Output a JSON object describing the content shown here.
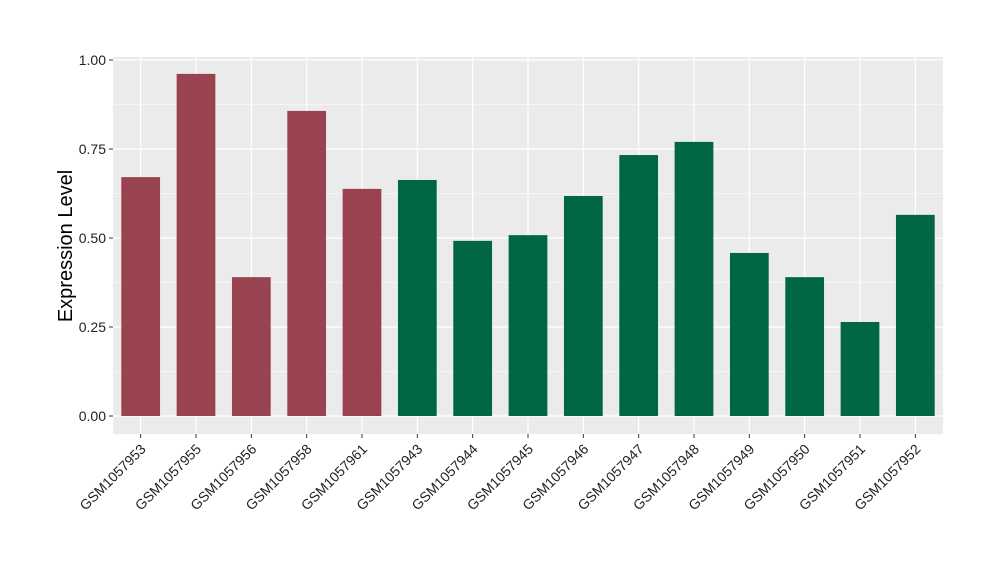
{
  "chart_data": {
    "type": "bar",
    "title": "",
    "xlabel": "",
    "ylabel": "Expression Level",
    "ylim": [
      0,
      1
    ],
    "yticks": [
      "0.00",
      "0.25",
      "0.50",
      "0.75",
      "1.00"
    ],
    "grid": true,
    "categories": [
      "GSM1057953",
      "GSM1057955",
      "GSM1057956",
      "GSM1057958",
      "GSM1057961",
      "GSM1057943",
      "GSM1057944",
      "GSM1057945",
      "GSM1057946",
      "GSM1057947",
      "GSM1057948",
      "GSM1057949",
      "GSM1057950",
      "GSM1057951",
      "GSM1057952"
    ],
    "values": [
      0.671,
      0.961,
      0.39,
      0.857,
      0.638,
      0.663,
      0.492,
      0.508,
      0.618,
      0.733,
      0.77,
      0.458,
      0.39,
      0.264,
      0.565
    ],
    "group_colors": [
      "#9a4350",
      "#9a4350",
      "#9a4350",
      "#9a4350",
      "#9a4350",
      "#006644",
      "#006644",
      "#006644",
      "#006644",
      "#006644",
      "#006644",
      "#006644",
      "#006644",
      "#006644",
      "#006644"
    ],
    "panel_background": "#ebebeb"
  }
}
